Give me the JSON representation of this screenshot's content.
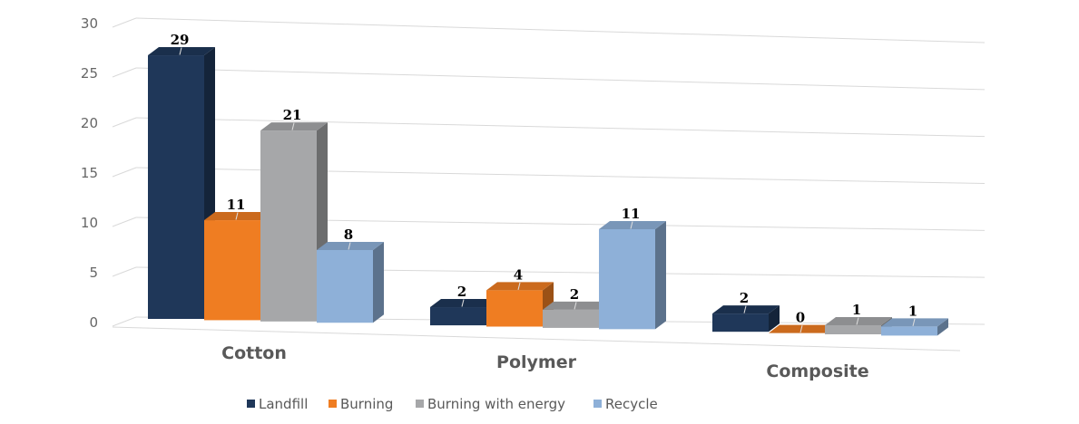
{
  "chart_data": {
    "type": "bar",
    "categories": [
      "Cotton",
      "Polymer",
      "Composite"
    ],
    "series": [
      {
        "name": "Landfill",
        "values": [
          29,
          2,
          2
        ],
        "labels": [
          "29",
          "2",
          "2"
        ],
        "color": "#1f3759"
      },
      {
        "name": "Burning",
        "values": [
          11,
          4,
          0
        ],
        "labels": [
          "11",
          "4",
          "0"
        ],
        "color": "#ef7d22"
      },
      {
        "name": "Burning with energy",
        "values": [
          21,
          2,
          1
        ],
        "labels": [
          "21",
          "2",
          "1"
        ],
        "color": "#a6a7a9"
      },
      {
        "name": "Recycle",
        "values": [
          8,
          11,
          1
        ],
        "labels": [
          "8",
          "11",
          "1"
        ],
        "color": "#8eb0d8"
      }
    ],
    "ylim": [
      0,
      30
    ],
    "yticks": [
      "0",
      "5",
      "10",
      "15",
      "20",
      "25",
      "30"
    ],
    "grid": true,
    "legend_position": "bottom",
    "title": "",
    "xlabel": "",
    "ylabel": ""
  }
}
